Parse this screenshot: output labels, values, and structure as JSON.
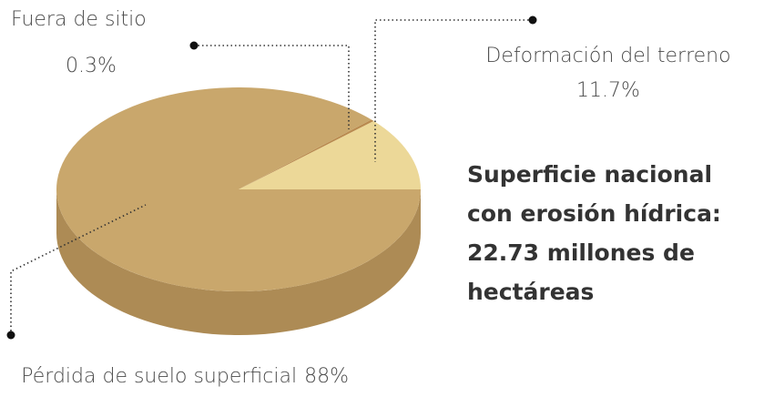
{
  "chart_data": {
    "type": "pie",
    "categories": [
      "Deformación del terreno",
      "Fuera de sitio",
      "Pérdida de suelo superficial"
    ],
    "values": [
      11.7,
      0.3,
      88
    ],
    "value_labels": [
      "11.7%",
      "0.3%",
      "88%"
    ],
    "colors": [
      "#ecd898",
      "#b98a4e",
      "#c9a76c"
    ],
    "annotation": [
      "Superficie nacional",
      "con erosión hídrica:",
      "22.73 millones de",
      "hectáreas"
    ]
  }
}
